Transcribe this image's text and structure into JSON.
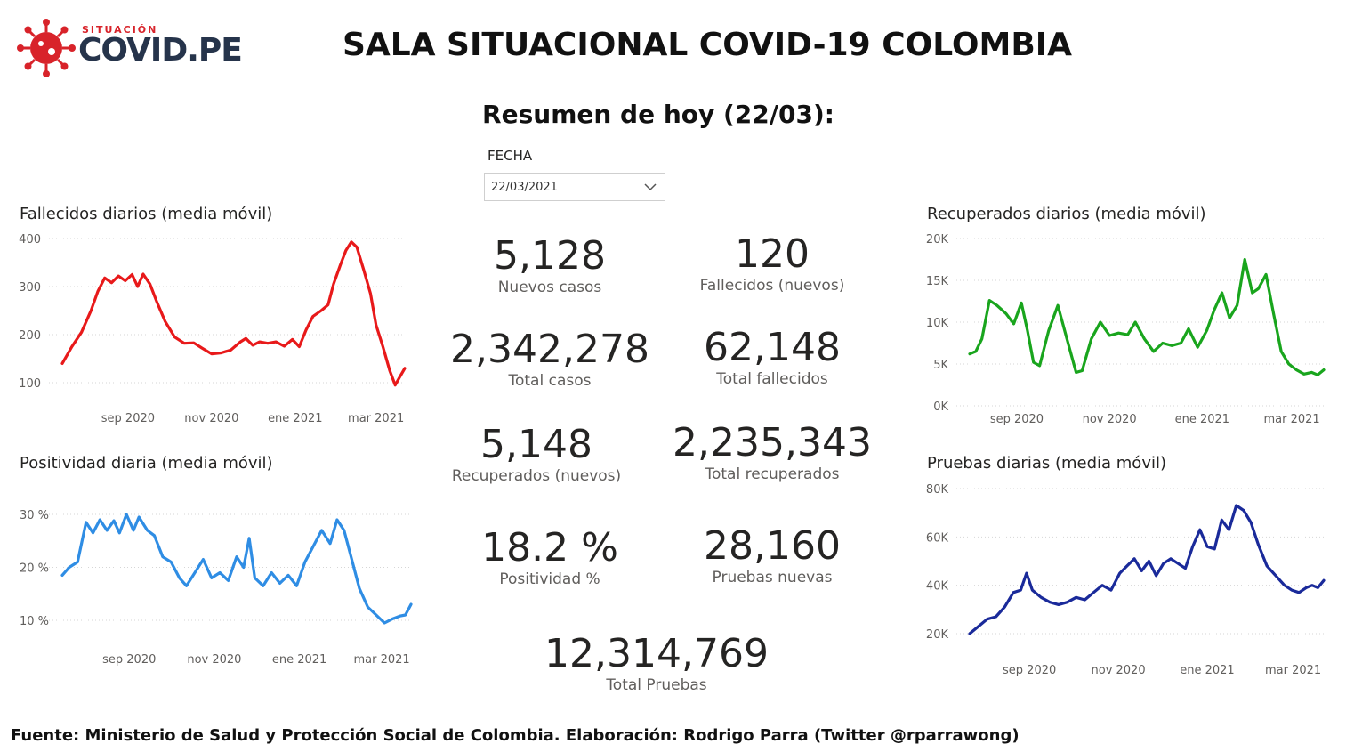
{
  "header": {
    "logo_kicker": "SITUACIÓN",
    "logo_name": "COVID.PE",
    "title": "SALA SITUACIONAL COVID-19 COLOMBIA",
    "summary_title": "Resumen de hoy (22/03):"
  },
  "date_filter": {
    "label": "FECHA",
    "value": "22/03/2021"
  },
  "kpis": [
    {
      "value": "5,128",
      "label": "Nuevos casos"
    },
    {
      "value": "120",
      "label": "Fallecidos (nuevos)"
    },
    {
      "value": "2,342,278",
      "label": "Total casos"
    },
    {
      "value": "62,148",
      "label": "Total fallecidos"
    },
    {
      "value": "5,148",
      "label": "Recuperados (nuevos)"
    },
    {
      "value": "2,235,343",
      "label": "Total recuperados"
    },
    {
      "value": "18.2 %",
      "label": "Positividad %"
    },
    {
      "value": "28,160",
      "label": "Pruebas nuevas"
    },
    {
      "value": "12,314,769",
      "label": "Total Pruebas"
    }
  ],
  "footer": "Fuente: Ministerio de Salud y Protección Social de Colombia. Elaboración: Rodrigo Parra (Twitter @rparrawong)",
  "chart_data": [
    {
      "id": "fallecidos",
      "type": "line",
      "title": "Fallecidos diarios (media móvil)",
      "color": "#e8191a",
      "x_start": "2020-07-15",
      "x_end": "2021-03-22",
      "x_ticks": [
        "sep 2020",
        "nov 2020",
        "ene 2021",
        "mar 2021"
      ],
      "y_ticks": [
        "100",
        "200",
        "300",
        "400"
      ],
      "ylim": [
        100,
        400
      ],
      "grid": true,
      "series": [
        {
          "values": [
            [
              "2020-07-15",
              140
            ],
            [
              "2020-07-22",
              175
            ],
            [
              "2020-07-29",
              205
            ],
            [
              "2020-08-05",
              250
            ],
            [
              "2020-08-10",
              290
            ],
            [
              "2020-08-15",
              318
            ],
            [
              "2020-08-20",
              308
            ],
            [
              "2020-08-25",
              322
            ],
            [
              "2020-08-30",
              312
            ],
            [
              "2020-09-04",
              325
            ],
            [
              "2020-09-08",
              300
            ],
            [
              "2020-09-12",
              326
            ],
            [
              "2020-09-17",
              305
            ],
            [
              "2020-09-22",
              268
            ],
            [
              "2020-09-28",
              228
            ],
            [
              "2020-10-05",
              195
            ],
            [
              "2020-10-12",
              182
            ],
            [
              "2020-10-19",
              183
            ],
            [
              "2020-10-25",
              172
            ],
            [
              "2020-11-01",
              160
            ],
            [
              "2020-11-08",
              162
            ],
            [
              "2020-11-15",
              168
            ],
            [
              "2020-11-22",
              185
            ],
            [
              "2020-11-26",
              192
            ],
            [
              "2020-12-01",
              178
            ],
            [
              "2020-12-06",
              185
            ],
            [
              "2020-12-12",
              182
            ],
            [
              "2020-12-18",
              185
            ],
            [
              "2020-12-24",
              176
            ],
            [
              "2020-12-30",
              190
            ],
            [
              "2021-01-04",
              175
            ],
            [
              "2021-01-09",
              210
            ],
            [
              "2021-01-14",
              238
            ],
            [
              "2021-01-20",
              250
            ],
            [
              "2021-01-25",
              262
            ],
            [
              "2021-01-29",
              305
            ],
            [
              "2021-02-03",
              345
            ],
            [
              "2021-02-07",
              375
            ],
            [
              "2021-02-11",
              393
            ],
            [
              "2021-02-15",
              382
            ],
            [
              "2021-02-20",
              335
            ],
            [
              "2021-02-25",
              285
            ],
            [
              "2021-03-01",
              220
            ],
            [
              "2021-03-06",
              175
            ],
            [
              "2021-03-11",
              125
            ],
            [
              "2021-03-15",
              95
            ],
            [
              "2021-03-18",
              110
            ],
            [
              "2021-03-22",
              130
            ]
          ]
        }
      ]
    },
    {
      "id": "positividad",
      "type": "line",
      "title": "Positividad diaria (media móvil)",
      "color": "#2f8de4",
      "x_start": "2020-07-15",
      "x_end": "2021-03-22",
      "x_ticks": [
        "sep 2020",
        "nov 2020",
        "ene 2021",
        "mar 2021"
      ],
      "y_ticks": [
        "10 %",
        "20 %",
        "30 %"
      ],
      "ylim": [
        10,
        30
      ],
      "grid": true,
      "series": [
        {
          "values": [
            [
              "2020-07-15",
              18.5
            ],
            [
              "2020-07-20",
              20
            ],
            [
              "2020-07-26",
              21
            ],
            [
              "2020-08-01",
              28.5
            ],
            [
              "2020-08-06",
              26.5
            ],
            [
              "2020-08-11",
              29
            ],
            [
              "2020-08-16",
              27
            ],
            [
              "2020-08-21",
              28.8
            ],
            [
              "2020-08-25",
              26.5
            ],
            [
              "2020-08-30",
              30
            ],
            [
              "2020-09-04",
              27
            ],
            [
              "2020-09-08",
              29.5
            ],
            [
              "2020-09-14",
              27
            ],
            [
              "2020-09-19",
              26
            ],
            [
              "2020-09-25",
              22
            ],
            [
              "2020-10-01",
              21
            ],
            [
              "2020-10-07",
              18
            ],
            [
              "2020-10-12",
              16.5
            ],
            [
              "2020-10-18",
              19
            ],
            [
              "2020-10-24",
              21.5
            ],
            [
              "2020-10-30",
              18
            ],
            [
              "2020-11-05",
              19
            ],
            [
              "2020-11-11",
              17.5
            ],
            [
              "2020-11-17",
              22
            ],
            [
              "2020-11-22",
              20
            ],
            [
              "2020-11-26",
              25.5
            ],
            [
              "2020-11-30",
              18
            ],
            [
              "2020-12-06",
              16.5
            ],
            [
              "2020-12-12",
              19
            ],
            [
              "2020-12-18",
              17
            ],
            [
              "2020-12-24",
              18.5
            ],
            [
              "2020-12-30",
              16.5
            ],
            [
              "2021-01-05",
              21
            ],
            [
              "2021-01-11",
              24
            ],
            [
              "2021-01-17",
              27
            ],
            [
              "2021-01-23",
              24.5
            ],
            [
              "2021-01-28",
              29
            ],
            [
              "2021-02-02",
              27
            ],
            [
              "2021-02-07",
              22
            ],
            [
              "2021-02-13",
              16
            ],
            [
              "2021-02-19",
              12.5
            ],
            [
              "2021-02-25",
              11
            ],
            [
              "2021-03-03",
              9.5
            ],
            [
              "2021-03-09",
              10.3
            ],
            [
              "2021-03-14",
              10.8
            ],
            [
              "2021-03-18",
              11
            ],
            [
              "2021-03-22",
              13
            ]
          ]
        }
      ]
    },
    {
      "id": "recuperados",
      "type": "line",
      "title": "Recuperados diarios (media móvil)",
      "color": "#19a51d",
      "x_start": "2020-08-01",
      "x_end": "2021-03-22",
      "x_ticks": [
        "sep 2020",
        "nov 2020",
        "ene 2021",
        "mar 2021"
      ],
      "y_ticks": [
        "0K",
        "5K",
        "10K",
        "15K",
        "20K"
      ],
      "ylim": [
        0,
        20000
      ],
      "grid": true,
      "series": [
        {
          "values": [
            [
              "2020-08-01",
              6200
            ],
            [
              "2020-08-05",
              6500
            ],
            [
              "2020-08-09",
              8000
            ],
            [
              "2020-08-14",
              12600
            ],
            [
              "2020-08-19",
              12000
            ],
            [
              "2020-08-25",
              11000
            ],
            [
              "2020-08-30",
              9800
            ],
            [
              "2020-09-04",
              12300
            ],
            [
              "2020-09-08",
              9000
            ],
            [
              "2020-09-12",
              5200
            ],
            [
              "2020-09-16",
              4800
            ],
            [
              "2020-09-22",
              9000
            ],
            [
              "2020-09-28",
              12000
            ],
            [
              "2020-10-04",
              8000
            ],
            [
              "2020-10-10",
              4000
            ],
            [
              "2020-10-14",
              4200
            ],
            [
              "2020-10-20",
              8000
            ],
            [
              "2020-10-26",
              10000
            ],
            [
              "2020-11-01",
              8400
            ],
            [
              "2020-11-07",
              8700
            ],
            [
              "2020-11-13",
              8500
            ],
            [
              "2020-11-18",
              10000
            ],
            [
              "2020-11-24",
              8000
            ],
            [
              "2020-11-30",
              6500
            ],
            [
              "2020-12-06",
              7500
            ],
            [
              "2020-12-12",
              7200
            ],
            [
              "2020-12-18",
              7500
            ],
            [
              "2020-12-23",
              9200
            ],
            [
              "2020-12-29",
              7000
            ],
            [
              "2021-01-04",
              9000
            ],
            [
              "2021-01-09",
              11500
            ],
            [
              "2021-01-14",
              13500
            ],
            [
              "2021-01-19",
              10500
            ],
            [
              "2021-01-24",
              12000
            ],
            [
              "2021-01-29",
              17500
            ],
            [
              "2021-02-03",
              13500
            ],
            [
              "2021-02-07",
              14000
            ],
            [
              "2021-02-12",
              15700
            ],
            [
              "2021-02-17",
              11000
            ],
            [
              "2021-02-22",
              6500
            ],
            [
              "2021-02-27",
              5000
            ],
            [
              "2021-03-04",
              4300
            ],
            [
              "2021-03-09",
              3800
            ],
            [
              "2021-03-14",
              4000
            ],
            [
              "2021-03-18",
              3700
            ],
            [
              "2021-03-22",
              4300
            ]
          ]
        }
      ]
    },
    {
      "id": "pruebas",
      "type": "line",
      "title": "Pruebas diarias (media móvil)",
      "color": "#1a2a9a",
      "x_start": "2020-07-22",
      "x_end": "2021-03-22",
      "x_ticks": [
        "sep 2020",
        "nov 2020",
        "ene 2021",
        "mar 2021"
      ],
      "y_ticks": [
        "20K",
        "40K",
        "60K",
        "80K"
      ],
      "ylim": [
        20000,
        80000
      ],
      "grid": true,
      "series": [
        {
          "values": [
            [
              "2020-07-22",
              20000
            ],
            [
              "2020-07-28",
              23000
            ],
            [
              "2020-08-03",
              26000
            ],
            [
              "2020-08-09",
              27000
            ],
            [
              "2020-08-15",
              31000
            ],
            [
              "2020-08-21",
              37000
            ],
            [
              "2020-08-26",
              38000
            ],
            [
              "2020-08-30",
              45000
            ],
            [
              "2020-09-03",
              38000
            ],
            [
              "2020-09-09",
              35000
            ],
            [
              "2020-09-15",
              33000
            ],
            [
              "2020-09-21",
              32000
            ],
            [
              "2020-09-27",
              33000
            ],
            [
              "2020-10-03",
              35000
            ],
            [
              "2020-10-09",
              34000
            ],
            [
              "2020-10-15",
              37000
            ],
            [
              "2020-10-21",
              40000
            ],
            [
              "2020-10-27",
              38000
            ],
            [
              "2020-11-02",
              45000
            ],
            [
              "2020-11-07",
              48000
            ],
            [
              "2020-11-12",
              51000
            ],
            [
              "2020-11-17",
              46000
            ],
            [
              "2020-11-22",
              50000
            ],
            [
              "2020-11-27",
              44000
            ],
            [
              "2020-12-02",
              49000
            ],
            [
              "2020-12-07",
              51000
            ],
            [
              "2020-12-12",
              49000
            ],
            [
              "2020-12-17",
              47000
            ],
            [
              "2020-12-22",
              56000
            ],
            [
              "2020-12-27",
              63000
            ],
            [
              "2021-01-01",
              56000
            ],
            [
              "2021-01-06",
              55000
            ],
            [
              "2021-01-11",
              67000
            ],
            [
              "2021-01-16",
              63000
            ],
            [
              "2021-01-21",
              73000
            ],
            [
              "2021-01-26",
              71000
            ],
            [
              "2021-01-31",
              66000
            ],
            [
              "2021-02-05",
              57000
            ],
            [
              "2021-02-11",
              48000
            ],
            [
              "2021-02-17",
              44000
            ],
            [
              "2021-02-23",
              40000
            ],
            [
              "2021-02-28",
              38000
            ],
            [
              "2021-03-05",
              37000
            ],
            [
              "2021-03-10",
              39000
            ],
            [
              "2021-03-14",
              40000
            ],
            [
              "2021-03-18",
              39000
            ],
            [
              "2021-03-22",
              42000
            ]
          ]
        }
      ]
    }
  ]
}
